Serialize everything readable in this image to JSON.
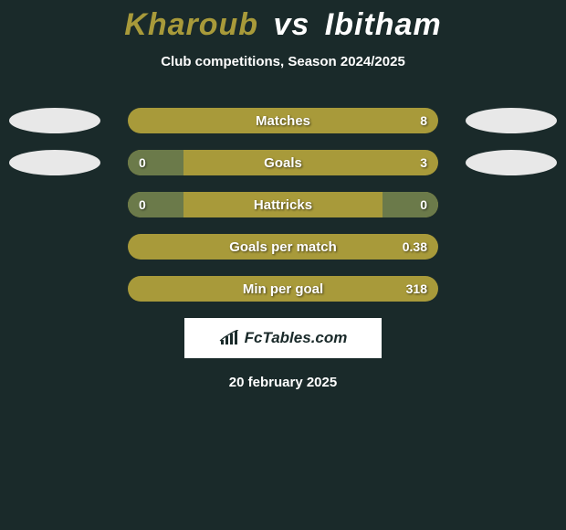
{
  "header": {
    "player1": "Kharoub",
    "vs": "vs",
    "player2": "Ibitham",
    "subtitle": "Club competitions, Season 2024/2025",
    "player1_color": "#a89a3a",
    "player2_color": "#ffffff"
  },
  "colors": {
    "background": "#1a2a2a",
    "bar_track": "#6b7a4a",
    "bar_left": "#a89a3a",
    "bar_right": "#d4d4d4",
    "chip": "#e8e8e8",
    "text": "#ffffff"
  },
  "stats": [
    {
      "label": "Matches",
      "left_val": "",
      "right_val": "8",
      "left_pct": 0,
      "right_pct": 0,
      "show_left_chip": true,
      "show_right_chip": true,
      "track_color": "#a89a3a"
    },
    {
      "label": "Goals",
      "left_val": "0",
      "right_val": "3",
      "left_pct": 18,
      "right_pct": 0,
      "show_left_chip": true,
      "show_right_chip": true,
      "track_color": "#a89a3a",
      "left_fill_color": "#6b7a4a"
    },
    {
      "label": "Hattricks",
      "left_val": "0",
      "right_val": "0",
      "left_pct": 18,
      "right_pct": 18,
      "show_left_chip": false,
      "show_right_chip": false,
      "track_color": "#a89a3a",
      "left_fill_color": "#6b7a4a",
      "right_fill_color": "#6b7a4a"
    },
    {
      "label": "Goals per match",
      "left_val": "",
      "right_val": "0.38",
      "left_pct": 0,
      "right_pct": 0,
      "show_left_chip": false,
      "show_right_chip": false,
      "track_color": "#a89a3a"
    },
    {
      "label": "Min per goal",
      "left_val": "",
      "right_val": "318",
      "left_pct": 0,
      "right_pct": 0,
      "show_left_chip": false,
      "show_right_chip": false,
      "track_color": "#a89a3a"
    }
  ],
  "footer": {
    "logo_text": "FcTables.com",
    "date": "20 february 2025"
  }
}
